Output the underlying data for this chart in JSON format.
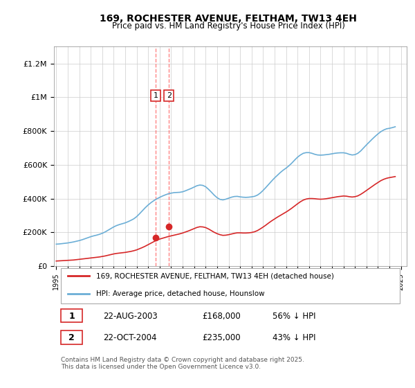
{
  "title": "169, ROCHESTER AVENUE, FELTHAM, TW13 4EH",
  "subtitle": "Price paid vs. HM Land Registry's House Price Index (HPI)",
  "ylabel_ticks": [
    "£0",
    "£200K",
    "£400K",
    "£600K",
    "£800K",
    "£1M",
    "£1.2M"
  ],
  "ylim": [
    0,
    1300000
  ],
  "xlim_start": 1995,
  "xlim_end": 2025.5,
  "hpi_color": "#6baed6",
  "price_color": "#d62728",
  "transaction_color": "#ff0000",
  "vline_color": "#d62728",
  "legend1_label": "169, ROCHESTER AVENUE, FELTHAM, TW13 4EH (detached house)",
  "legend2_label": "HPI: Average price, detached house, Hounslow",
  "transactions": [
    {
      "label": "1",
      "date": "22-AUG-2003",
      "price": "£168,000",
      "hpi_pct": "56% ↓ HPI",
      "year": 2003.64
    },
    {
      "label": "2",
      "date": "22-OCT-2004",
      "price": "£235,000",
      "hpi_pct": "43% ↓ HPI",
      "year": 2004.81
    }
  ],
  "footer": "Contains HM Land Registry data © Crown copyright and database right 2025.\nThis data is licensed under the Open Government Licence v3.0.",
  "hpi_data_x": [
    1995,
    1995.25,
    1995.5,
    1995.75,
    1996,
    1996.25,
    1996.5,
    1996.75,
    1997,
    1997.25,
    1997.5,
    1997.75,
    1998,
    1998.25,
    1998.5,
    1998.75,
    1999,
    1999.25,
    1999.5,
    1999.75,
    2000,
    2000.25,
    2000.5,
    2000.75,
    2001,
    2001.25,
    2001.5,
    2001.75,
    2002,
    2002.25,
    2002.5,
    2002.75,
    2003,
    2003.25,
    2003.5,
    2003.75,
    2004,
    2004.25,
    2004.5,
    2004.75,
    2005,
    2005.25,
    2005.5,
    2005.75,
    2006,
    2006.25,
    2006.5,
    2006.75,
    2007,
    2007.25,
    2007.5,
    2007.75,
    2008,
    2008.25,
    2008.5,
    2008.75,
    2009,
    2009.25,
    2009.5,
    2009.75,
    2010,
    2010.25,
    2010.5,
    2010.75,
    2011,
    2011.25,
    2011.5,
    2011.75,
    2012,
    2012.25,
    2012.5,
    2012.75,
    2013,
    2013.25,
    2013.5,
    2013.75,
    2014,
    2014.25,
    2014.5,
    2014.75,
    2015,
    2015.25,
    2015.5,
    2015.75,
    2016,
    2016.25,
    2016.5,
    2016.75,
    2017,
    2017.25,
    2017.5,
    2017.75,
    2018,
    2018.25,
    2018.5,
    2018.75,
    2019,
    2019.25,
    2019.5,
    2019.75,
    2020,
    2020.25,
    2020.5,
    2020.75,
    2021,
    2021.25,
    2021.5,
    2021.75,
    2022,
    2022.25,
    2022.5,
    2022.75,
    2023,
    2023.25,
    2023.5,
    2023.75,
    2024,
    2024.25,
    2024.5
  ],
  "hpi_data_y": [
    130000,
    131000,
    133000,
    135000,
    137000,
    140000,
    143000,
    147000,
    151000,
    156000,
    162000,
    168000,
    174000,
    179000,
    183000,
    188000,
    194000,
    202000,
    212000,
    222000,
    232000,
    240000,
    246000,
    251000,
    256000,
    263000,
    271000,
    280000,
    293000,
    310000,
    328000,
    346000,
    362000,
    376000,
    388000,
    398000,
    407000,
    415000,
    422000,
    428000,
    432000,
    435000,
    436000,
    437000,
    440000,
    446000,
    453000,
    460000,
    468000,
    476000,
    480000,
    478000,
    470000,
    455000,
    438000,
    420000,
    405000,
    395000,
    392000,
    396000,
    402000,
    408000,
    412000,
    413000,
    410000,
    408000,
    407000,
    408000,
    410000,
    413000,
    420000,
    432000,
    448000,
    466000,
    485000,
    504000,
    522000,
    538000,
    554000,
    568000,
    580000,
    594000,
    610000,
    628000,
    645000,
    658000,
    668000,
    672000,
    672000,
    668000,
    662000,
    658000,
    657000,
    658000,
    660000,
    662000,
    665000,
    668000,
    670000,
    671000,
    671000,
    668000,
    662000,
    658000,
    660000,
    668000,
    682000,
    700000,
    718000,
    735000,
    752000,
    768000,
    783000,
    796000,
    806000,
    813000,
    816000,
    820000,
    825000
  ],
  "price_data_x": [
    1995,
    1995.25,
    1995.5,
    1995.75,
    1996,
    1996.25,
    1996.5,
    1996.75,
    1997,
    1997.25,
    1997.5,
    1997.75,
    1998,
    1998.25,
    1998.5,
    1998.75,
    1999,
    1999.25,
    1999.5,
    1999.75,
    2000,
    2000.25,
    2000.5,
    2000.75,
    2001,
    2001.25,
    2001.5,
    2001.75,
    2002,
    2002.25,
    2002.5,
    2002.75,
    2003,
    2003.25,
    2003.5,
    2003.75,
    2004,
    2004.25,
    2004.5,
    2004.75,
    2005,
    2005.25,
    2005.5,
    2005.75,
    2006,
    2006.25,
    2006.5,
    2006.75,
    2007,
    2007.25,
    2007.5,
    2007.75,
    2008,
    2008.25,
    2008.5,
    2008.75,
    2009,
    2009.25,
    2009.5,
    2009.75,
    2010,
    2010.25,
    2010.5,
    2010.75,
    2011,
    2011.25,
    2011.5,
    2011.75,
    2012,
    2012.25,
    2012.5,
    2012.75,
    2013,
    2013.25,
    2013.5,
    2013.75,
    2014,
    2014.25,
    2014.5,
    2014.75,
    2015,
    2015.25,
    2015.5,
    2015.75,
    2016,
    2016.25,
    2016.5,
    2016.75,
    2017,
    2017.25,
    2017.5,
    2017.75,
    2018,
    2018.25,
    2018.5,
    2018.75,
    2019,
    2019.25,
    2019.5,
    2019.75,
    2020,
    2020.25,
    2020.5,
    2020.75,
    2021,
    2021.25,
    2021.5,
    2021.75,
    2022,
    2022.25,
    2022.5,
    2022.75,
    2023,
    2023.25,
    2023.5,
    2023.75,
    2024,
    2024.25,
    2024.5
  ],
  "price_data_y": [
    30000,
    31000,
    32000,
    33000,
    34000,
    35000,
    36000,
    38000,
    40000,
    42000,
    44000,
    46000,
    48000,
    50000,
    52000,
    54000,
    57000,
    60000,
    64000,
    68000,
    72000,
    75000,
    77000,
    79000,
    81000,
    84000,
    87000,
    91000,
    96000,
    103000,
    110000,
    118000,
    127000,
    136000,
    145000,
    153000,
    160000,
    165000,
    170000,
    175000,
    179000,
    183000,
    187000,
    191000,
    196000,
    202000,
    208000,
    215000,
    222000,
    229000,
    233000,
    232000,
    228000,
    220000,
    210000,
    200000,
    192000,
    186000,
    182000,
    183000,
    186000,
    190000,
    194000,
    197000,
    197000,
    196000,
    196000,
    197000,
    199000,
    203000,
    210000,
    220000,
    231000,
    243000,
    256000,
    268000,
    279000,
    290000,
    300000,
    310000,
    320000,
    331000,
    343000,
    356000,
    369000,
    381000,
    391000,
    397000,
    400000,
    400000,
    399000,
    397000,
    396000,
    397000,
    399000,
    402000,
    405000,
    408000,
    411000,
    413000,
    415000,
    414000,
    411000,
    409000,
    411000,
    416000,
    425000,
    436000,
    448000,
    460000,
    472000,
    484000,
    495000,
    506000,
    514000,
    520000,
    524000,
    527000,
    530000
  ]
}
